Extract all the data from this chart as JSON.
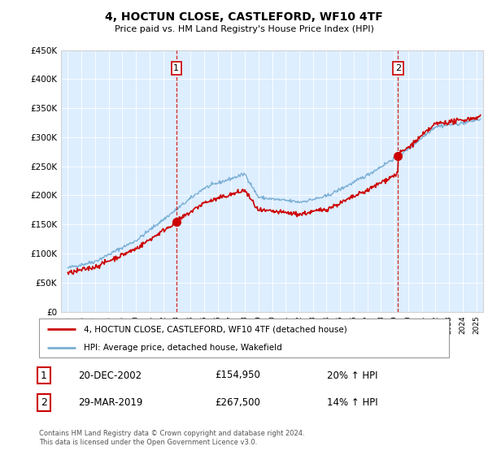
{
  "title": "4, HOCTUN CLOSE, CASTLEFORD, WF10 4TF",
  "subtitle": "Price paid vs. HM Land Registry's House Price Index (HPI)",
  "legend_line1": "4, HOCTUN CLOSE, CASTLEFORD, WF10 4TF (detached house)",
  "legend_line2": "HPI: Average price, detached house, Wakefield",
  "footnote": "Contains HM Land Registry data © Crown copyright and database right 2024.\nThis data is licensed under the Open Government Licence v3.0.",
  "transaction1_date": "20-DEC-2002",
  "transaction1_price": "£154,950",
  "transaction1_hpi": "20% ↑ HPI",
  "transaction2_date": "29-MAR-2019",
  "transaction2_price": "£267,500",
  "transaction2_hpi": "14% ↑ HPI",
  "hpi_color": "#7bafd4",
  "price_color": "#cc0000",
  "vline_color": "#cc0000",
  "bg_color": "#ddeeff",
  "marker1_x": 2002.97,
  "marker1_y": 154950,
  "marker2_x": 2019.25,
  "marker2_y": 267500,
  "ylim_min": 0,
  "ylim_max": 450000,
  "yticks": [
    0,
    50000,
    100000,
    150000,
    200000,
    250000,
    300000,
    350000,
    400000,
    450000
  ],
  "ytick_labels": [
    "£0",
    "£50K",
    "£100K",
    "£150K",
    "£200K",
    "£250K",
    "£300K",
    "£350K",
    "£400K",
    "£450K"
  ],
  "xlim_min": 1994.5,
  "xlim_max": 2025.5
}
